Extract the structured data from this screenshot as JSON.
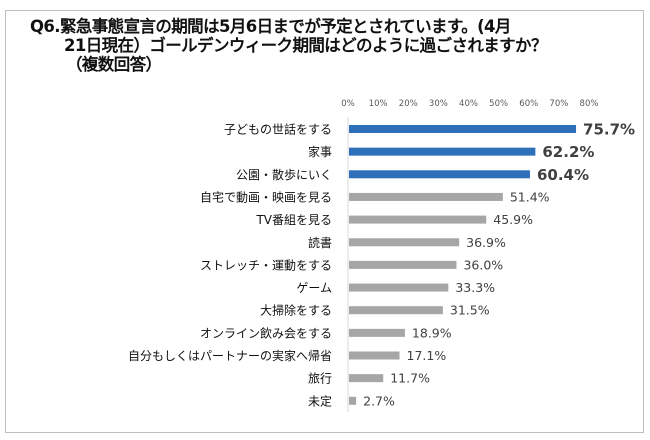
{
  "chart_data": {
    "type": "bar",
    "orientation": "horizontal",
    "title_lines": [
      "Q6.緊急事態宣言の期間は5月6日までが予定とされています。(4月",
      "21日現在）ゴールデンウィーク期間はどのように過ごされますか？",
      "（複数回答）"
    ],
    "categories": [
      "子どもの世話をする",
      "家事",
      "公園・散歩にいく",
      "自宅で動画・映画を見る",
      "TV番組を見る",
      "読書",
      "ストレッチ・運動をする",
      "ゲーム",
      "大掃除をする",
      "オンライン飲み会をする",
      "自分もしくはパートナーの実家へ帰省",
      "旅行",
      "未定"
    ],
    "values": [
      75.7,
      62.2,
      60.4,
      51.4,
      45.9,
      36.9,
      36.0,
      33.3,
      31.5,
      18.9,
      17.1,
      11.7,
      2.7
    ],
    "data_labels": [
      "75.7%",
      "62.2%",
      "60.4%",
      "51.4%",
      "45.9%",
      "36.9%",
      "36.0%",
      "33.3%",
      "31.5%",
      "18.9%",
      "17.1%",
      "11.7%",
      "2.7%"
    ],
    "highlighted_top": 3,
    "xlim": [
      0,
      80
    ],
    "x_ticks": [
      "0%",
      "10%",
      "20%",
      "30%",
      "40%",
      "50%",
      "60%",
      "70%",
      "80%"
    ],
    "tick_position": "top",
    "grid": false,
    "colors": {
      "highlight": "#2e6fba",
      "default": "#a6a6a6",
      "label": "#404040"
    }
  }
}
